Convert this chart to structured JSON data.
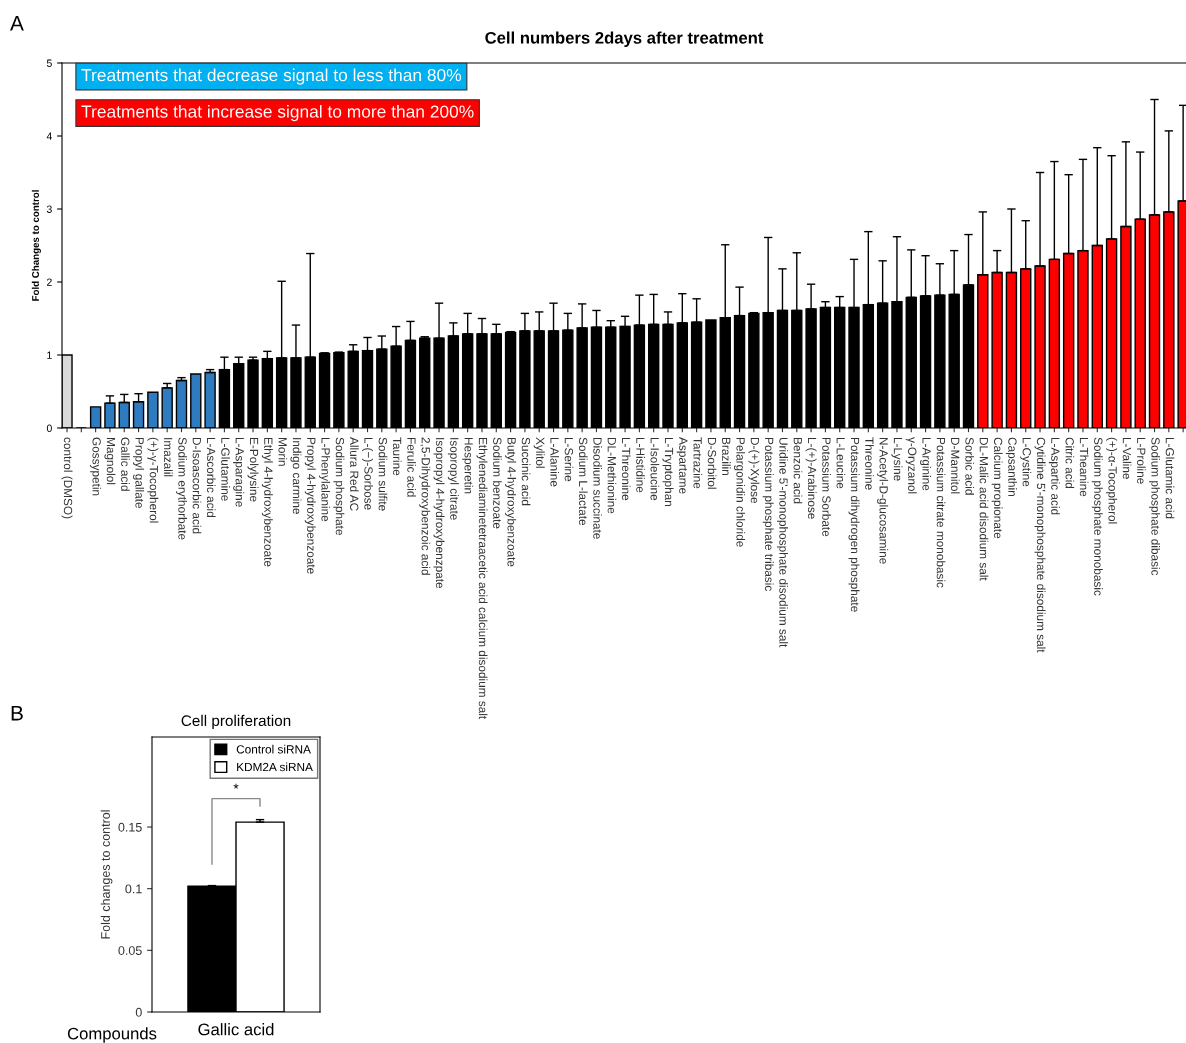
{
  "chart_data": [
    {
      "type": "bar",
      "title": "Cell numbers 2days after treatment",
      "ylabel": "Fold Changes to control",
      "categories": [
        "control (DMSO)",
        null,
        "Gossypetin",
        "Magnolol",
        "Gallic acid",
        "Propyl gallate",
        "(+)-γ-Tocopherol",
        "Imazalil",
        "Sodium erythorbate",
        "D-Isoascorbic acid",
        "L-Ascorbic acid",
        "L-Glutamine",
        "L-Asparagine",
        "E-Polylysine",
        "Ethyl 4-hydroxybenzoate",
        "Morin",
        "Indigo carmine",
        "Propyl 4-hydroxybenzoate",
        "L-Phenylalanine",
        "Sodium phosphate",
        "Allura Red AC",
        "L-(−)-Sorbose",
        "Sodium sulfite",
        "Taurine",
        "Ferulic acid",
        "2,5-Dihydroxybenzoic acid",
        "Isopropyl 4-hydroxybenzpate",
        "Isopropyl citrate",
        "Hesperetin",
        "Ethylenediaminetetraacetic acid calcium disodium salt",
        "Sodium benzoate",
        "Butyl 4-hydroxybenzoate",
        "Succinic acid",
        "Xylitol",
        "L-Alanine",
        "L-Serine",
        "Sodium L-lactate",
        "Disodium succinate",
        "DL-Methionine",
        "L-Threonine",
        "L-Histidine",
        "L-Isoleucine",
        "L-Tryptophan",
        "Aspartame",
        "Tartrazine",
        "D-Sorbitol",
        "Brazilin",
        "Pelargonidin chloride",
        "D-(+)-Xylose",
        "Potassium phosphate tribasic",
        "Uridine 5'-monophosphate disodium salt",
        "Benzoic acid",
        "L-(+)-Arabinose",
        "Potassium Sorbate",
        "L-Leucine",
        "Potassium dihydrogen phosphate",
        "Threonine",
        "N-Acetyl-D-glucosamine",
        "L-Lysine",
        "γ-Oryzanol",
        "L-Arginine",
        "Potassium citrate monobasic",
        "D-Mannitol",
        "Sorbic acid",
        "DL-Malic acid disodium salt",
        "Calcium propionate",
        "Capsanthin",
        "L-Cystine",
        "Cytidine 5'-monophosphate disodium salt",
        "L-Aspartic acid",
        "Citric acid",
        "L-Theanine",
        "Sodium phosphate monobasic",
        "(+)-α-Tocopherol",
        "L-Valine",
        "L-Proline",
        "Sodium phosphate dibasic",
        "L-Glutamic acid",
        null
      ],
      "values": [
        1.0,
        null,
        0.29,
        0.34,
        0.35,
        0.36,
        0.49,
        0.55,
        0.65,
        0.74,
        0.76,
        0.8,
        0.88,
        0.93,
        0.95,
        0.96,
        0.96,
        0.97,
        1.02,
        1.03,
        1.05,
        1.06,
        1.08,
        1.12,
        1.2,
        1.23,
        1.23,
        1.26,
        1.29,
        1.29,
        1.29,
        1.31,
        1.33,
        1.33,
        1.33,
        1.34,
        1.37,
        1.38,
        1.38,
        1.39,
        1.41,
        1.42,
        1.42,
        1.44,
        1.45,
        1.48,
        1.51,
        1.54,
        1.57,
        1.58,
        1.61,
        1.61,
        1.63,
        1.65,
        1.65,
        1.65,
        1.69,
        1.71,
        1.73,
        1.79,
        1.81,
        1.82,
        1.83,
        1.96,
        2.1,
        2.13,
        2.13,
        2.18,
        2.22,
        2.31,
        2.39,
        2.43,
        2.5,
        2.59,
        2.76,
        2.86,
        2.92,
        2.96,
        3.11
      ],
      "errors": [
        null,
        null,
        null,
        [
          0.34,
          0.44
        ],
        [
          0.35,
          0.46
        ],
        [
          0.36,
          0.47
        ],
        null,
        [
          0.55,
          0.61
        ],
        [
          0.65,
          0.69
        ],
        null,
        [
          0.76,
          0.8
        ],
        [
          0.8,
          0.97
        ],
        [
          0.88,
          0.97
        ],
        [
          0.93,
          0.97
        ],
        [
          0.95,
          1.05
        ],
        [
          0.96,
          2.01
        ],
        [
          0.96,
          1.41
        ],
        [
          0.97,
          2.39
        ],
        [
          1.02,
          1.03
        ],
        [
          1.03,
          1.04
        ],
        [
          1.05,
          1.14
        ],
        [
          1.06,
          1.24
        ],
        [
          1.08,
          1.26
        ],
        [
          1.12,
          1.39
        ],
        [
          1.2,
          1.46
        ],
        [
          1.23,
          1.25
        ],
        [
          1.23,
          1.71
        ],
        [
          1.26,
          1.44
        ],
        [
          1.29,
          1.57
        ],
        [
          1.29,
          1.5
        ],
        [
          1.29,
          1.42
        ],
        [
          1.31,
          1.32
        ],
        [
          1.33,
          1.57
        ],
        [
          1.33,
          1.59
        ],
        [
          1.33,
          1.71
        ],
        [
          1.34,
          1.57
        ],
        [
          1.37,
          1.7
        ],
        [
          1.38,
          1.61
        ],
        [
          1.38,
          1.47
        ],
        [
          1.39,
          1.53
        ],
        [
          1.41,
          1.82
        ],
        [
          1.42,
          1.83
        ],
        [
          1.42,
          1.59
        ],
        [
          1.44,
          1.84
        ],
        [
          1.45,
          1.77
        ],
        null,
        [
          1.51,
          2.51
        ],
        [
          1.54,
          1.93
        ],
        [
          1.57,
          1.58
        ],
        [
          1.58,
          2.61
        ],
        [
          1.61,
          2.18
        ],
        [
          1.61,
          2.4
        ],
        [
          1.63,
          1.97
        ],
        [
          1.65,
          1.73
        ],
        [
          1.65,
          1.8
        ],
        [
          1.65,
          2.31
        ],
        [
          1.69,
          2.69
        ],
        [
          1.71,
          2.29
        ],
        [
          1.73,
          2.62
        ],
        [
          1.79,
          2.44
        ],
        [
          1.81,
          2.36
        ],
        [
          1.82,
          2.25
        ],
        [
          1.83,
          2.43
        ],
        [
          1.96,
          2.65
        ],
        [
          2.1,
          2.96
        ],
        [
          2.13,
          2.43
        ],
        [
          2.13,
          3.0
        ],
        [
          2.18,
          2.84
        ],
        [
          2.22,
          3.5
        ],
        [
          2.31,
          3.65
        ],
        [
          2.39,
          3.47
        ],
        [
          2.43,
          3.68
        ],
        [
          2.5,
          3.84
        ],
        [
          2.59,
          3.73
        ],
        [
          2.76,
          3.92
        ],
        [
          2.86,
          3.78
        ],
        [
          2.92,
          4.5
        ],
        [
          2.96,
          4.07
        ],
        [
          3.11,
          4.42
        ]
      ],
      "colors": [
        "#d9d9d9",
        "#000000",
        "#2f7bbf",
        "#2f7bbf",
        "#2f7bbf",
        "#2f7bbf",
        "#2f7bbf",
        "#2f7bbf",
        "#2f7bbf",
        "#2f7bbf",
        "#2f7bbf",
        "#000000",
        "#000000",
        "#000000",
        "#000000",
        "#000000",
        "#000000",
        "#000000",
        "#000000",
        "#000000",
        "#000000",
        "#000000",
        "#000000",
        "#000000",
        "#000000",
        "#000000",
        "#000000",
        "#000000",
        "#000000",
        "#000000",
        "#000000",
        "#000000",
        "#000000",
        "#000000",
        "#000000",
        "#000000",
        "#000000",
        "#000000",
        "#000000",
        "#000000",
        "#000000",
        "#000000",
        "#000000",
        "#000000",
        "#000000",
        "#000000",
        "#000000",
        "#000000",
        "#000000",
        "#000000",
        "#000000",
        "#000000",
        "#000000",
        "#000000",
        "#000000",
        "#000000",
        "#000000",
        "#000000",
        "#000000",
        "#000000",
        "#000000",
        "#000000",
        "#000000",
        "#000000",
        "#ff0000",
        "#ff0000",
        "#ff0000",
        "#ff0000",
        "#ff0000",
        "#ff0000",
        "#ff0000",
        "#ff0000",
        "#ff0000",
        "#ff0000",
        "#ff0000",
        "#ff0000",
        "#ff0000",
        "#ff0000",
        "#ff0000"
      ],
      "ylim": [
        0,
        5
      ],
      "yticks": [
        0,
        1,
        2,
        3,
        4,
        5
      ],
      "annotations": [
        "A",
        "Treatments that decrease signal to less than 80%",
        "Treatments that increase signal to more than 200%"
      ]
    },
    {
      "type": "bar",
      "title": "Cell proliferation",
      "ylabel": "Fold changes to control",
      "categories": [
        "Gallic acid"
      ],
      "series": [
        {
          "name": "Control siRNA",
          "color": "#000000",
          "values": [
            0.102
          ],
          "errors": [
            [
              0.102,
              0.1025
            ]
          ]
        },
        {
          "name": "KDM2A siRNA",
          "color": "#ffffff",
          "values": [
            0.154
          ],
          "errors": [
            [
              0.154,
              0.156
            ]
          ]
        }
      ],
      "ylim": [
        0,
        0.223
      ],
      "yticks": [
        0,
        0.05,
        0.1,
        0.15
      ],
      "legend": "top right",
      "annotations": [
        "B",
        "*",
        "Compounds"
      ]
    }
  ]
}
